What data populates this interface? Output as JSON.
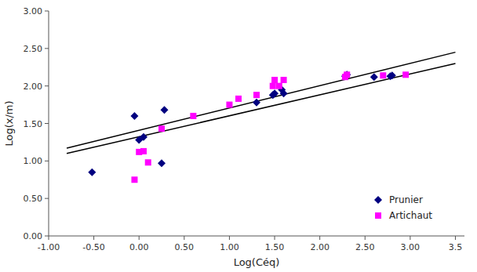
{
  "chart_data": {
    "type": "scatter",
    "x_label": "Log(Céq)",
    "y_label": "Log(x/m)",
    "xlim": [
      -1.0,
      3.6
    ],
    "ylim": [
      0.0,
      3.0
    ],
    "xticks": [
      {
        "value": -1.0,
        "label": "-1.00"
      },
      {
        "value": -0.5,
        "label": "-0.50"
      },
      {
        "value": 0.0,
        "label": "0.00"
      },
      {
        "value": 0.5,
        "label": "0.50"
      },
      {
        "value": 1.0,
        "label": "1.00"
      },
      {
        "value": 1.5,
        "label": "1.50"
      },
      {
        "value": 2.0,
        "label": "2.00"
      },
      {
        "value": 2.5,
        "label": "2.50"
      },
      {
        "value": 3.0,
        "label": "3.00"
      },
      3.5
    ],
    "yticks": [
      {
        "value": 0.0,
        "label": "0.00"
      },
      {
        "value": 0.5,
        "label": "0.50"
      },
      {
        "value": 1.0,
        "label": "1.00"
      },
      {
        "value": 1.5,
        "label": "1.50"
      },
      {
        "value": 2.0,
        "label": "2.00"
      },
      {
        "value": 2.5,
        "label": "2.50"
      },
      {
        "value": 3.0,
        "label": "3.00"
      }
    ],
    "legend": "lower right",
    "series": [
      {
        "name": "Prunier",
        "type": "scatter",
        "color": "#000080",
        "marker": "diamond",
        "x": [
          -0.52,
          -0.05,
          0.0,
          0.05,
          0.25,
          0.28,
          1.3,
          1.48,
          1.5,
          1.58,
          1.6,
          2.28,
          2.3,
          2.6,
          2.78,
          2.8
        ],
        "values": [
          0.85,
          1.6,
          1.28,
          1.32,
          0.97,
          1.68,
          1.78,
          1.88,
          1.9,
          1.95,
          1.9,
          2.13,
          2.15,
          2.12,
          2.13,
          2.14
        ]
      },
      {
        "name": "Artichaut",
        "type": "scatter",
        "color": "#FF00FF",
        "marker": "square",
        "x": [
          -0.05,
          0.0,
          0.05,
          0.1,
          0.25,
          0.6,
          1.0,
          1.1,
          1.3,
          1.48,
          1.5,
          1.55,
          1.6,
          2.28,
          2.3,
          2.7,
          2.95
        ],
        "values": [
          0.75,
          1.12,
          1.13,
          0.98,
          1.43,
          1.6,
          1.75,
          1.83,
          1.88,
          2.0,
          2.08,
          2.0,
          2.08,
          2.12,
          2.15,
          2.14,
          2.15
        ]
      },
      {
        "type": "line",
        "color": "#000000",
        "x": [
          -0.8,
          3.5
        ],
        "values": [
          1.17,
          2.45
        ]
      },
      {
        "type": "line",
        "color": "#000000",
        "x": [
          -0.8,
          3.5
        ],
        "values": [
          1.1,
          2.3
        ]
      }
    ]
  }
}
